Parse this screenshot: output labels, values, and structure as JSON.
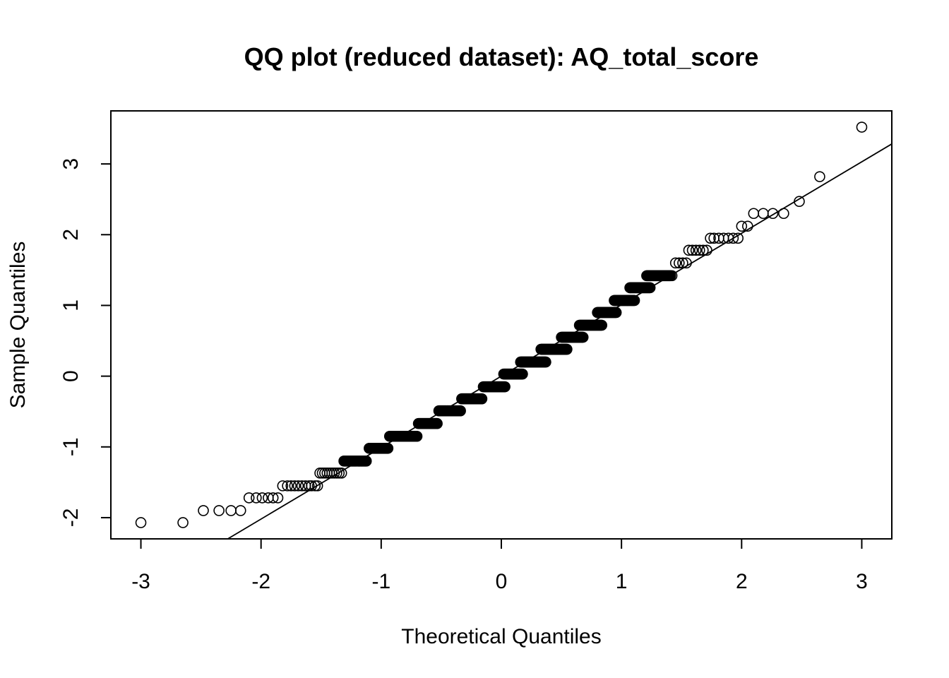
{
  "chart_data": {
    "type": "scatter",
    "title": "QQ plot (reduced dataset): AQ_total_score",
    "xlabel": "Theoretical Quantiles",
    "ylabel": "Sample Quantiles",
    "xlim": [
      -3.25,
      3.25
    ],
    "ylim": [
      -2.3,
      3.75
    ],
    "xticks": [
      -3,
      -2,
      -1,
      0,
      1,
      2,
      3
    ],
    "yticks": [
      -2,
      -1,
      0,
      1,
      2,
      3
    ],
    "xtick_labels": [
      "-3",
      "-2",
      "-1",
      "0",
      "1",
      "2",
      "3"
    ],
    "ytick_labels": [
      "-2",
      "-1",
      "0",
      "1",
      "2",
      "3"
    ],
    "grid": false,
    "reference_line": {
      "slope": 1.01,
      "intercept": 0.0
    },
    "series": [
      {
        "individual_points": [
          [
            -3.0,
            -2.07
          ],
          [
            -2.65,
            -2.07
          ],
          [
            -2.48,
            -1.9
          ],
          [
            -2.35,
            -1.9
          ],
          [
            -2.25,
            -1.9
          ],
          [
            -2.17,
            -1.9
          ],
          [
            -2.1,
            -1.72
          ],
          [
            -2.04,
            -1.72
          ],
          [
            -1.99,
            -1.72
          ],
          [
            -1.94,
            -1.72
          ],
          [
            -1.9,
            -1.72
          ],
          [
            -1.86,
            -1.72
          ],
          [
            -1.82,
            -1.55
          ],
          [
            -1.78,
            -1.55
          ],
          [
            -1.75,
            -1.55
          ],
          [
            -1.72,
            -1.55
          ],
          [
            -1.69,
            -1.55
          ],
          [
            -1.66,
            -1.55
          ],
          [
            -1.63,
            -1.55
          ],
          [
            -1.6,
            -1.55
          ],
          [
            -1.58,
            -1.55
          ],
          [
            -1.55,
            -1.55
          ],
          [
            -1.53,
            -1.55
          ],
          [
            -1.51,
            -1.37
          ],
          [
            -1.49,
            -1.37
          ],
          [
            -1.47,
            -1.37
          ],
          [
            -1.45,
            -1.37
          ],
          [
            -1.43,
            -1.37
          ],
          [
            -1.41,
            -1.37
          ],
          [
            -1.39,
            -1.37
          ],
          [
            -1.37,
            -1.37
          ],
          [
            -1.35,
            -1.37
          ],
          [
            -1.33,
            -1.37
          ],
          [
            1.42,
            1.42
          ],
          [
            1.45,
            1.6
          ],
          [
            1.48,
            1.6
          ],
          [
            1.51,
            1.6
          ],
          [
            1.54,
            1.6
          ],
          [
            1.56,
            1.78
          ],
          [
            1.59,
            1.78
          ],
          [
            1.62,
            1.78
          ],
          [
            1.65,
            1.78
          ],
          [
            1.68,
            1.78
          ],
          [
            1.71,
            1.78
          ],
          [
            1.74,
            1.95
          ],
          [
            1.77,
            1.95
          ],
          [
            1.81,
            1.95
          ],
          [
            1.85,
            1.95
          ],
          [
            1.89,
            1.95
          ],
          [
            1.93,
            1.95
          ],
          [
            1.97,
            1.95
          ],
          [
            2.0,
            2.12
          ],
          [
            2.05,
            2.12
          ],
          [
            2.1,
            2.3
          ],
          [
            2.18,
            2.3
          ],
          [
            2.26,
            2.3
          ],
          [
            2.35,
            2.3
          ],
          [
            2.48,
            2.47
          ],
          [
            2.65,
            2.82
          ],
          [
            3.0,
            3.52
          ]
        ],
        "dense_runs": [
          {
            "y": -1.2,
            "x_from": -1.31,
            "x_to": -1.12
          },
          {
            "y": -1.02,
            "x_from": -1.1,
            "x_to": -0.94
          },
          {
            "y": -0.85,
            "x_from": -0.93,
            "x_to": -0.7
          },
          {
            "y": -0.67,
            "x_from": -0.69,
            "x_to": -0.53
          },
          {
            "y": -0.49,
            "x_from": -0.52,
            "x_to": -0.34
          },
          {
            "y": -0.32,
            "x_from": -0.33,
            "x_to": -0.16
          },
          {
            "y": -0.15,
            "x_from": -0.15,
            "x_to": 0.03
          },
          {
            "y": 0.03,
            "x_from": 0.02,
            "x_to": 0.18
          },
          {
            "y": 0.2,
            "x_from": 0.16,
            "x_to": 0.37
          },
          {
            "y": 0.38,
            "x_from": 0.33,
            "x_to": 0.55
          },
          {
            "y": 0.55,
            "x_from": 0.5,
            "x_to": 0.68
          },
          {
            "y": 0.72,
            "x_from": 0.65,
            "x_to": 0.84
          },
          {
            "y": 0.9,
            "x_from": 0.8,
            "x_to": 0.96
          },
          {
            "y": 1.07,
            "x_from": 0.94,
            "x_to": 1.11
          },
          {
            "y": 1.25,
            "x_from": 1.07,
            "x_to": 1.24
          },
          {
            "y": 1.42,
            "x_from": 1.21,
            "x_to": 1.41
          }
        ]
      }
    ]
  }
}
